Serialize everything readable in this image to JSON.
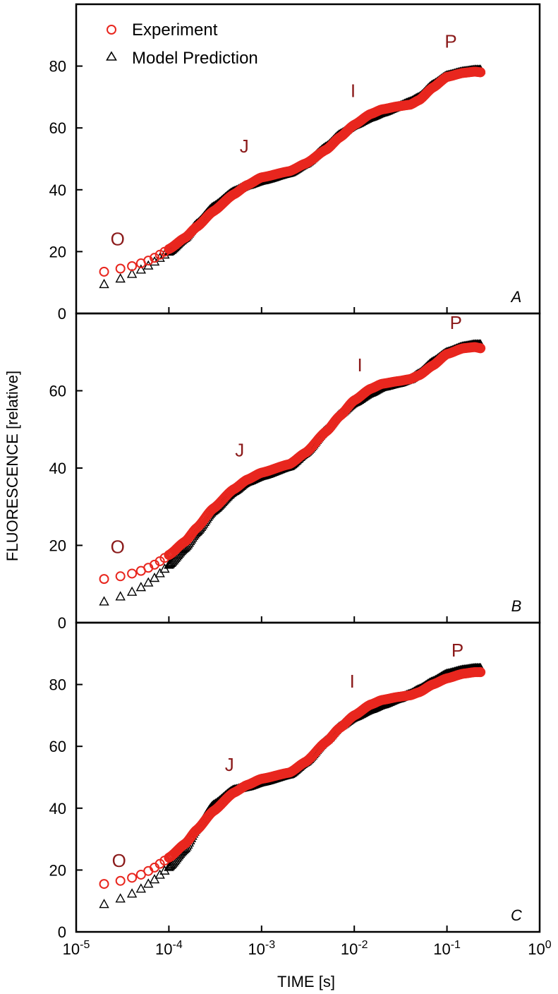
{
  "figure": {
    "ylabel": "FLUORESCENCE [relative]",
    "xlabel": "TIME [s]",
    "legend": [
      {
        "label": "Experiment",
        "marker": "circle",
        "color": "#e8261e"
      },
      {
        "label": "Model Prediction",
        "marker": "triangle",
        "color": "#000000"
      }
    ],
    "x_ticks": [
      {
        "base": "10",
        "exp": "-5"
      },
      {
        "base": "10",
        "exp": "-4"
      },
      {
        "base": "10",
        "exp": "-3"
      },
      {
        "base": "10",
        "exp": "-2"
      },
      {
        "base": "10",
        "exp": "-1"
      },
      {
        "base": "10",
        "exp": "0"
      }
    ]
  },
  "chart_data": [
    {
      "type": "scatter",
      "panel": "A",
      "xscale": "log",
      "xlim": [
        1e-05,
        1
      ],
      "ylim": [
        0,
        100
      ],
      "yticks": [
        "0",
        "20",
        "40",
        "60",
        "80"
      ],
      "ytick_values": [
        0,
        20,
        40,
        60,
        80
      ],
      "phase_labels": [
        {
          "text": "O",
          "x": 2.8e-05,
          "y": 22
        },
        {
          "text": "J",
          "x": 0.00065,
          "y": 52
        },
        {
          "text": "I",
          "x": 0.0097,
          "y": 70
        },
        {
          "text": "P",
          "x": 0.11,
          "y": 86
        }
      ],
      "series": [
        {
          "name": "Experiment",
          "x": [
            2e-05,
            3e-05,
            4e-05,
            5e-05,
            6e-05,
            7e-05,
            8e-05,
            0.0001,
            0.00015,
            0.0002,
            0.0003,
            0.0005,
            0.0007,
            0.001,
            0.002,
            0.003,
            0.005,
            0.007,
            0.01,
            0.015,
            0.02,
            0.03,
            0.04,
            0.05,
            0.07,
            0.1,
            0.15,
            0.2,
            0.23
          ],
          "y": [
            13.5,
            14.5,
            15.3,
            16.2,
            17.1,
            18.0,
            19.0,
            20.8,
            24.5,
            28.0,
            33.0,
            38.5,
            41.5,
            44.0,
            46.0,
            48.5,
            53.0,
            57.0,
            61.0,
            64.5,
            66.0,
            67.0,
            67.5,
            69.0,
            73.0,
            76.5,
            77.8,
            78.2,
            78.0
          ]
        },
        {
          "name": "Model Prediction",
          "x": [
            2e-05,
            3e-05,
            4e-05,
            5e-05,
            6e-05,
            7e-05,
            8e-05,
            0.0001,
            0.00015,
            0.0002,
            0.0003,
            0.0005,
            0.0007,
            0.001,
            0.002,
            0.003,
            0.005,
            0.007,
            0.01,
            0.015,
            0.02,
            0.03,
            0.04,
            0.05,
            0.07,
            0.1,
            0.15,
            0.2,
            0.23
          ],
          "y": [
            9.5,
            11.3,
            12.8,
            14.2,
            15.5,
            16.8,
            18.0,
            20.0,
            24.5,
            29.0,
            34.5,
            39.5,
            41.5,
            43.0,
            45.5,
            48.5,
            54.0,
            58.0,
            61.0,
            63.5,
            65.0,
            67.0,
            68.5,
            70.0,
            74.0,
            77.0,
            78.3,
            78.8,
            78.8
          ]
        }
      ]
    },
    {
      "type": "scatter",
      "panel": "B",
      "xscale": "log",
      "xlim": [
        1e-05,
        1
      ],
      "ylim": [
        0,
        80
      ],
      "yticks": [
        "0",
        "20",
        "40",
        "60"
      ],
      "ytick_values": [
        0,
        20,
        40,
        60
      ],
      "phase_labels": [
        {
          "text": "O",
          "x": 2.8e-05,
          "y": 18
        },
        {
          "text": "J",
          "x": 0.00058,
          "y": 43
        },
        {
          "text": "I",
          "x": 0.0115,
          "y": 65
        },
        {
          "text": "P",
          "x": 0.125,
          "y": 76
        }
      ],
      "series": [
        {
          "name": "Experiment",
          "x": [
            2e-05,
            3e-05,
            4e-05,
            5e-05,
            6e-05,
            7e-05,
            8e-05,
            0.0001,
            0.00015,
            0.0002,
            0.0003,
            0.0005,
            0.0007,
            0.001,
            0.002,
            0.003,
            0.005,
            0.007,
            0.01,
            0.015,
            0.02,
            0.03,
            0.04,
            0.05,
            0.07,
            0.1,
            0.15,
            0.2,
            0.23
          ],
          "y": [
            11.3,
            12.0,
            12.7,
            13.4,
            14.2,
            15.0,
            15.9,
            17.5,
            21.0,
            24.5,
            29.5,
            34.5,
            37.0,
            38.8,
            41.0,
            44.0,
            49.5,
            53.5,
            57.5,
            60.5,
            61.8,
            62.5,
            63.0,
            64.0,
            66.5,
            69.5,
            71.0,
            71.3,
            71.0
          ]
        },
        {
          "name": "Model Prediction",
          "x": [
            2e-05,
            3e-05,
            4e-05,
            5e-05,
            6e-05,
            7e-05,
            8e-05,
            0.0001,
            0.00015,
            0.0002,
            0.0003,
            0.0005,
            0.0007,
            0.001,
            0.002,
            0.003,
            0.005,
            0.007,
            0.01,
            0.015,
            0.02,
            0.03,
            0.04,
            0.05,
            0.07,
            0.1,
            0.15,
            0.2,
            0.23
          ],
          "y": [
            5.5,
            6.8,
            8.0,
            9.2,
            10.4,
            11.6,
            12.8,
            15.0,
            19.5,
            23.5,
            29.0,
            34.0,
            36.5,
            38.0,
            40.5,
            44.0,
            50.0,
            54.0,
            57.0,
            59.5,
            61.0,
            62.0,
            63.0,
            64.5,
            67.5,
            70.0,
            71.5,
            72.0,
            72.0
          ]
        }
      ]
    },
    {
      "type": "scatter",
      "panel": "C",
      "xscale": "log",
      "xlim": [
        1e-05,
        1
      ],
      "ylim": [
        0,
        100
      ],
      "yticks": [
        "0",
        "20",
        "40",
        "60",
        "80"
      ],
      "ytick_values": [
        0,
        20,
        40,
        60,
        80
      ],
      "phase_labels": [
        {
          "text": "O",
          "x": 2.9e-05,
          "y": 21
        },
        {
          "text": "J",
          "x": 0.00045,
          "y": 52
        },
        {
          "text": "I",
          "x": 0.0095,
          "y": 79
        },
        {
          "text": "P",
          "x": 0.13,
          "y": 89
        }
      ],
      "series": [
        {
          "name": "Experiment",
          "x": [
            2e-05,
            3e-05,
            4e-05,
            5e-05,
            6e-05,
            7e-05,
            8e-05,
            0.0001,
            0.00015,
            0.0002,
            0.0003,
            0.0005,
            0.0007,
            0.001,
            0.002,
            0.003,
            0.005,
            0.007,
            0.01,
            0.015,
            0.02,
            0.03,
            0.04,
            0.05,
            0.07,
            0.1,
            0.15,
            0.2,
            0.23
          ],
          "y": [
            15.5,
            16.5,
            17.5,
            18.5,
            19.7,
            20.8,
            22.0,
            24.0,
            28.5,
            33.0,
            39.0,
            45.0,
            47.5,
            49.5,
            51.5,
            55.0,
            61.5,
            66.0,
            70.0,
            73.5,
            75.0,
            76.0,
            76.5,
            77.5,
            80.0,
            82.0,
            83.5,
            84.0,
            84.0
          ]
        },
        {
          "name": "Model Prediction",
          "x": [
            2e-05,
            3e-05,
            4e-05,
            5e-05,
            6e-05,
            7e-05,
            8e-05,
            0.0001,
            0.00015,
            0.0002,
            0.0003,
            0.0005,
            0.0007,
            0.001,
            0.002,
            0.003,
            0.005,
            0.007,
            0.01,
            0.015,
            0.02,
            0.03,
            0.04,
            0.05,
            0.07,
            0.1,
            0.15,
            0.2,
            0.23
          ],
          "y": [
            9.0,
            10.8,
            12.4,
            14.0,
            15.6,
            17.0,
            18.5,
            21.0,
            27.0,
            33.5,
            41.0,
            46.0,
            47.0,
            48.5,
            51.0,
            55.0,
            62.0,
            66.5,
            69.5,
            72.0,
            73.5,
            75.5,
            77.0,
            78.5,
            81.0,
            83.5,
            84.8,
            85.3,
            85.3
          ]
        }
      ]
    }
  ]
}
